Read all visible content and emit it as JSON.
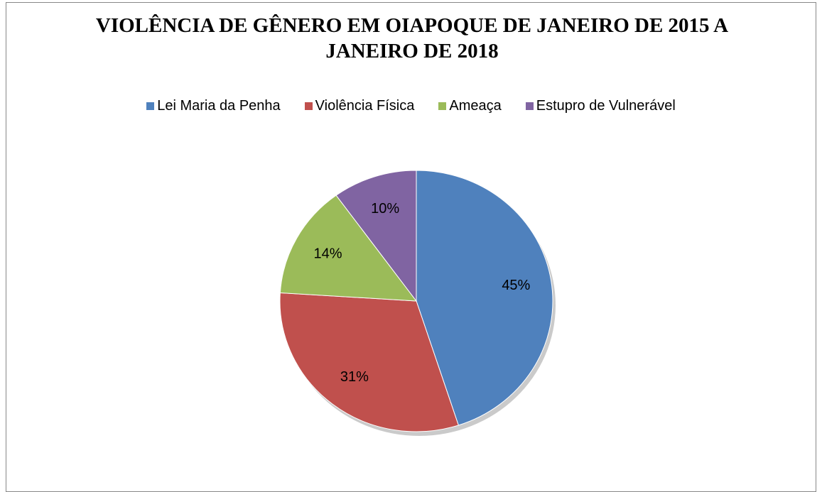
{
  "chart_data": {
    "type": "pie",
    "title": "VIOLÊNCIA DE GÊNERO EM OIAPOQUE DE JANEIRO DE 2015 A JANEIRO DE 2018",
    "categories": [
      "Lei Maria da Penha",
      "Violência Física",
      "Ameaça",
      "Estupro de Vulnerável"
    ],
    "values": [
      45,
      31,
      14,
      10
    ],
    "value_labels": [
      "45%",
      "31%",
      "14%",
      "10%"
    ],
    "colors": [
      "#4f81bd",
      "#c0504d",
      "#9bbb59",
      "#8064a2"
    ],
    "legend": "top"
  }
}
